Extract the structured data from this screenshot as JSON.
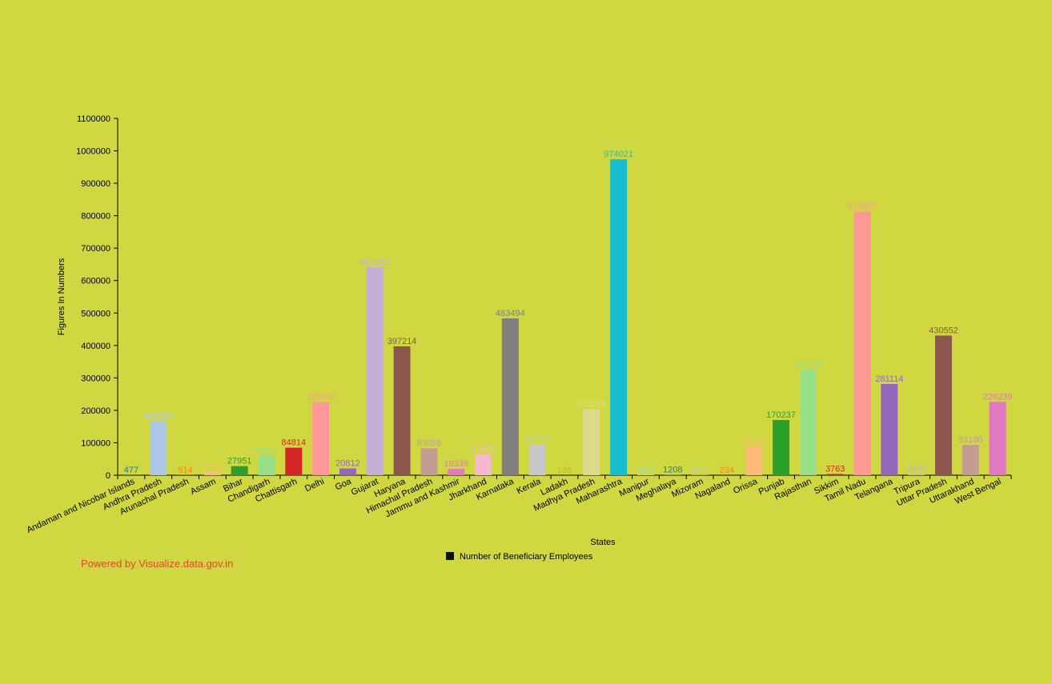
{
  "chart_data": {
    "type": "bar",
    "title": "",
    "xlabel": "States",
    "ylabel": "Figures In Numbers",
    "ylim": [
      0,
      1100000
    ],
    "yticks": [
      "0",
      "100000",
      "200000",
      "300000",
      "400000",
      "500000",
      "600000",
      "700000",
      "800000",
      "900000",
      "1000000",
      "1100000"
    ],
    "grid": false,
    "legend_position": "bottom",
    "series": [
      {
        "name": "Number of Beneficiary Employees",
        "color": "#111111",
        "values": [
          477,
          166603,
          514,
          12587,
          27951,
          60457,
          84814,
          225942,
          20812,
          641685,
          397214,
          83058,
          19339,
          63482,
          483494,
          96272,
          186,
          203996,
          974021,
          1409,
          1208,
          877,
          234,
          88210,
          170237,
          326739,
          3763,
          812807,
          281114,
          3440,
          430552,
          93180,
          226239
        ]
      }
    ],
    "categories": [
      "Andaman and Nicobar Islands",
      "Andhra Pradesh",
      "Arunachal Pradesh",
      "Assam",
      "Bihar",
      "Chandigarh",
      "Chattisgarh",
      "Delhi",
      "Goa",
      "Gujarat",
      "Haryana",
      "Himachal Pradesh",
      "Jammu and Kashmir",
      "Jharkhand",
      "Karnataka",
      "Kerala",
      "Ladakh",
      "Madhya Pradesh",
      "Maharashtra",
      "Manipur",
      "Meghalaya",
      "Mizoram",
      "Nagaland",
      "Orissa",
      "Punjab",
      "Rajasthan",
      "Sikkim",
      "Tamil Nadu",
      "Telangana",
      "Tripura",
      "Uttar Pradesh",
      "Uttarakhand",
      "West Bengal"
    ],
    "bar_colors": [
      "#1f77b4",
      "#aec7e8",
      "#ff7f0e",
      "#ffbb78",
      "#2ca02c",
      "#98df8a",
      "#d62728",
      "#ff9896",
      "#9467bd",
      "#c5b0d5",
      "#8c564b",
      "#c49c94",
      "#e377c2",
      "#f7b6d2",
      "#7f7f7f",
      "#c7c7c7",
      "#bcbd22",
      "#dbdb8d",
      "#17becf",
      "#9edae5",
      "#1f77b4",
      "#aec7e8",
      "#ff7f0e",
      "#ffbb78",
      "#2ca02c",
      "#98df8a",
      "#d62728",
      "#ff9896",
      "#9467bd",
      "#c5b0d5",
      "#8c564b",
      "#c49c94",
      "#e377c2"
    ]
  },
  "footer": {
    "powered_by": "Powered by Visualize.data.gov.in"
  },
  "colors": {
    "background": "#cfd841",
    "powered_by": "#e8432f"
  }
}
